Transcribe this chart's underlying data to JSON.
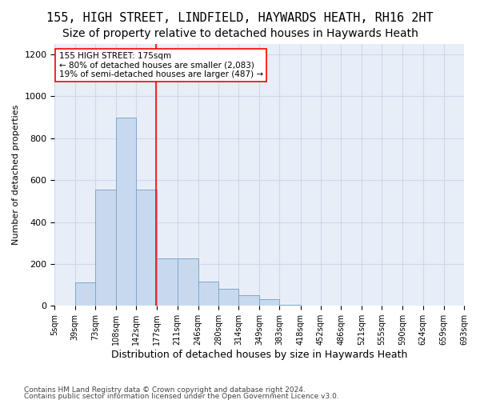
{
  "title1": "155, HIGH STREET, LINDFIELD, HAYWARDS HEATH, RH16 2HT",
  "title2": "Size of property relative to detached houses in Haywards Heath",
  "xlabel": "Distribution of detached houses by size in Haywards Heath",
  "ylabel": "Number of detached properties",
  "annotation_title": "155 HIGH STREET: 175sqm",
  "annotation_line1": "← 80% of detached houses are smaller (2,083)",
  "annotation_line2": "19% of semi-detached houses are larger (487) →",
  "footer1": "Contains HM Land Registry data © Crown copyright and database right 2024.",
  "footer2": "Contains public sector information licensed under the Open Government Licence v3.0.",
  "bin_edges": [
    5,
    39,
    73,
    108,
    142,
    177,
    211,
    246,
    280,
    314,
    349,
    383,
    418,
    452,
    486,
    521,
    555,
    590,
    624,
    659,
    693
  ],
  "bin_labels": [
    "5sqm",
    "39sqm",
    "73sqm",
    "108sqm",
    "142sqm",
    "177sqm",
    "211sqm",
    "246sqm",
    "280sqm",
    "314sqm",
    "349sqm",
    "383sqm",
    "418sqm",
    "452sqm",
    "486sqm",
    "521sqm",
    "555sqm",
    "590sqm",
    "624sqm",
    "659sqm",
    "693sqm"
  ],
  "bar_values": [
    0,
    110,
    555,
    900,
    555,
    225,
    225,
    115,
    80,
    50,
    30,
    5,
    0,
    0,
    0,
    0,
    0,
    0,
    0,
    0
  ],
  "bar_color": "#c9d9ed",
  "bar_edge_color": "#7aa8d0",
  "red_line_x": 175,
  "ylim": [
    0,
    1250
  ],
  "yticks": [
    0,
    200,
    400,
    600,
    800,
    1000,
    1200
  ],
  "grid_color": "#d0d8e8",
  "background_color": "#e8eef8",
  "title_fontsize": 11,
  "subtitle_fontsize": 10
}
